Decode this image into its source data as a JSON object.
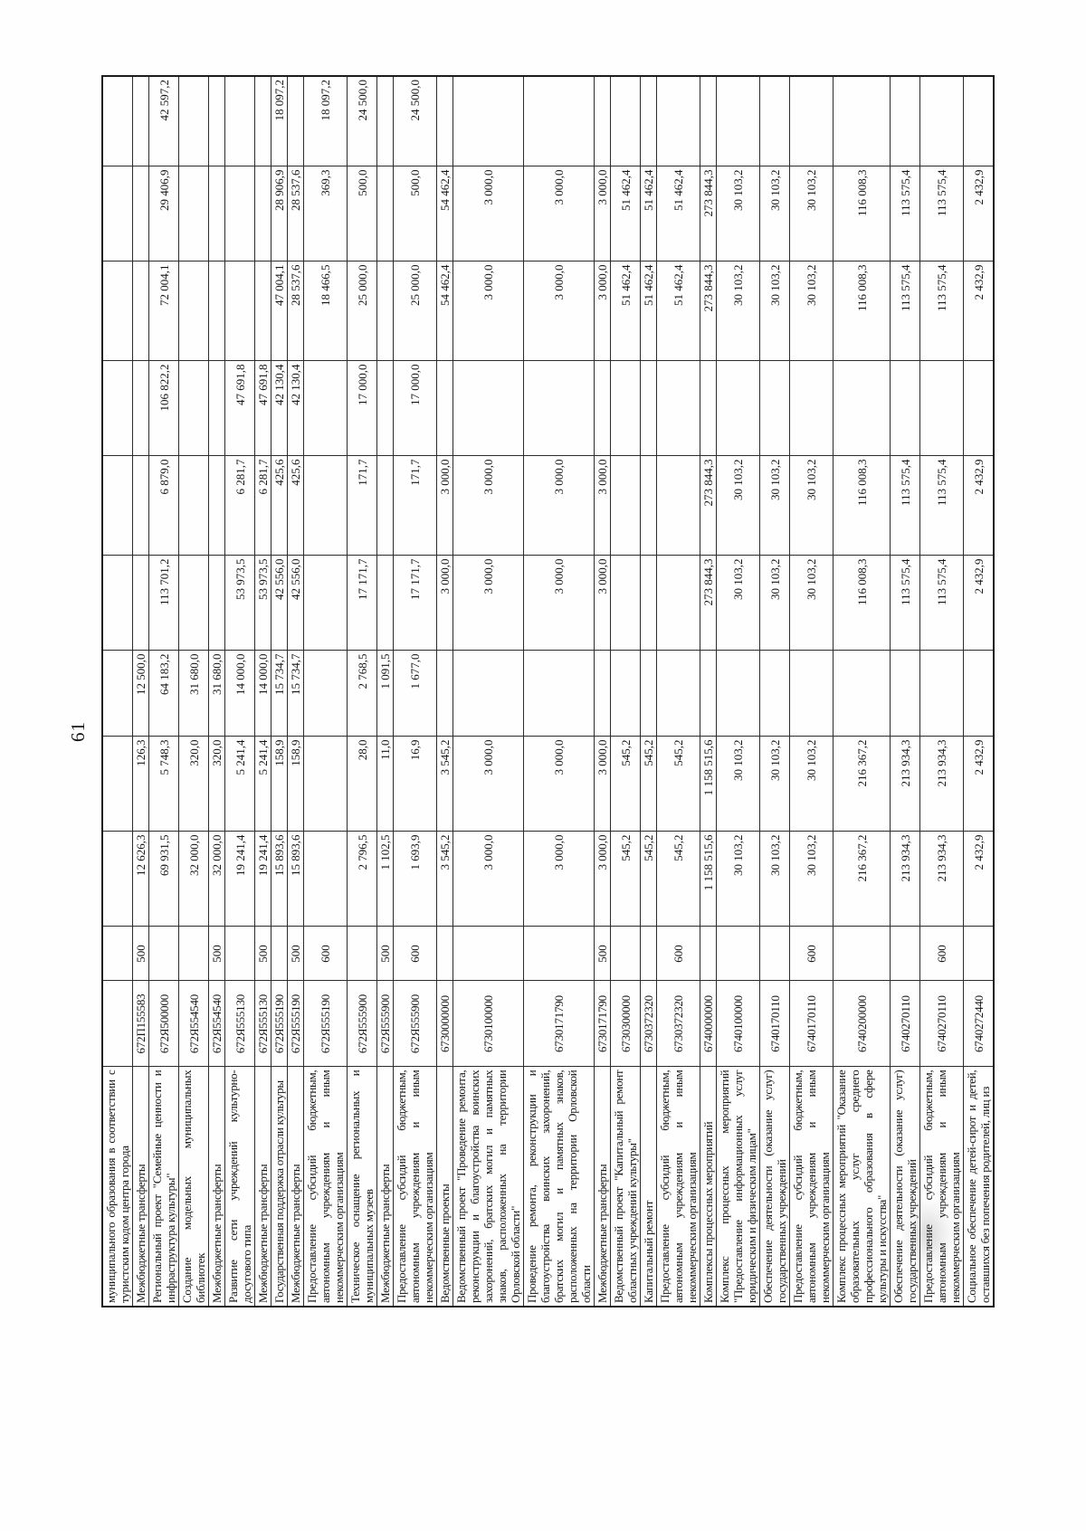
{
  "page": {
    "number": "61"
  },
  "table": {
    "rows": [
      {
        "description": "муниципального образования в соответствии с туристским кодом центра города",
        "code": "",
        "vr": "",
        "amounts": [
          "",
          "",
          "",
          "",
          "",
          "",
          "",
          "",
          ""
        ]
      },
      {
        "description": "Межбюджетные трансферты",
        "code": "672П155583",
        "vr": "500",
        "amounts": [
          "12 626,3",
          "126,3",
          "12 500,0",
          "",
          "",
          "",
          "",
          "",
          ""
        ]
      },
      {
        "description": "Региональный проект \"Семейные ценности и инфраструктура культуры\"",
        "code": "672Я500000",
        "vr": "",
        "amounts": [
          "69 931,5",
          "5 748,3",
          "64 183,2",
          "113 701,2",
          "6 879,0",
          "106 822,2",
          "72 004,1",
          "29 406,9",
          "42 597,2"
        ]
      },
      {
        "description": "Создание модельных муниципальных библиотек",
        "code": "672Я554540",
        "vr": "",
        "amounts": [
          "32 000,0",
          "320,0",
          "31 680,0",
          "",
          "",
          "",
          "",
          "",
          ""
        ]
      },
      {
        "description": "Межбюджетные трансферты",
        "code": "672Я554540",
        "vr": "500",
        "amounts": [
          "32 000,0",
          "320,0",
          "31 680,0",
          "",
          "",
          "",
          "",
          "",
          ""
        ]
      },
      {
        "description": "Развитие сети учреждений культурно-досугового типа",
        "code": "672Я555130",
        "vr": "",
        "amounts": [
          "19 241,4",
          "5 241,4",
          "14 000,0",
          "53 973,5",
          "6 281,7",
          "47 691,8",
          "",
          "",
          ""
        ]
      },
      {
        "description": "Межбюджетные трансферты",
        "code": "672Я555130",
        "vr": "500",
        "amounts": [
          "19 241,4",
          "5 241,4",
          "14 000,0",
          "53 973,5",
          "6 281,7",
          "47 691,8",
          "",
          "",
          ""
        ]
      },
      {
        "description": "Государственная поддержка отрасли культуры",
        "code": "672Я555190",
        "vr": "",
        "amounts": [
          "15 893,6",
          "158,9",
          "15 734,7",
          "42 556,0",
          "425,6",
          "42 130,4",
          "47 004,1",
          "28 906,9",
          "18 097,2"
        ]
      },
      {
        "description": "Межбюджетные трансферты",
        "code": "672Я555190",
        "vr": "500",
        "amounts": [
          "15 893,6",
          "158,9",
          "15 734,7",
          "42 556,0",
          "425,6",
          "42 130,4",
          "28 537,6",
          "28 537,6",
          ""
        ]
      },
      {
        "description": "Предоставление субсидий бюджетным, автономным учреждениям и иным некоммерческим организациям",
        "code": "672Я555190",
        "vr": "600",
        "amounts": [
          "",
          "",
          "",
          "",
          "",
          "",
          "18 466,5",
          "369,3",
          "18 097,2"
        ]
      },
      {
        "description": "Техническое оснащение региональных и муниципальных музеев",
        "code": "672Я555900",
        "vr": "",
        "amounts": [
          "2 796,5",
          "28,0",
          "2 768,5",
          "17 171,7",
          "171,7",
          "17 000,0",
          "25 000,0",
          "500,0",
          "24 500,0"
        ]
      },
      {
        "description": "Межбюджетные трансферты",
        "code": "672Я555900",
        "vr": "500",
        "amounts": [
          "1 102,5",
          "11,0",
          "1 091,5",
          "",
          "",
          "",
          "",
          "",
          ""
        ]
      },
      {
        "description": "Предоставление субсидий бюджетным, автономным учреждениям и иным некоммерческим организациям",
        "code": "672Я555900",
        "vr": "600",
        "amounts": [
          "1 693,9",
          "16,9",
          "1 677,0",
          "17 171,7",
          "171,7",
          "17 000,0",
          "25 000,0",
          "500,0",
          "24 500,0"
        ]
      },
      {
        "description": "Ведомственные проекты",
        "code": "6730000000",
        "vr": "",
        "amounts": [
          "3 545,2",
          "3 545,2",
          "",
          "3 000,0",
          "3 000,0",
          "",
          "54 462,4",
          "54 462,4",
          ""
        ]
      },
      {
        "description": "Ведомственный проект \"Проведение ремонта, реконструкции и благоустройства воинских захоронений, братских могил и памятных знаков, расположенных на территории Орловской области\"",
        "code": "6730100000",
        "vr": "",
        "amounts": [
          "3 000,0",
          "3 000,0",
          "",
          "3 000,0",
          "3 000,0",
          "",
          "3 000,0",
          "3 000,0",
          ""
        ]
      },
      {
        "description": "Проведение ремонта, реконструкции и благоустройства воинских захоронений, братских могил и памятных знаков, расположенных на территории Орловской области",
        "code": "6730171790",
        "vr": "",
        "amounts": [
          "3 000,0",
          "3 000,0",
          "",
          "3 000,0",
          "3 000,0",
          "",
          "3 000,0",
          "3 000,0",
          ""
        ]
      },
      {
        "description": "Межбюджетные трансферты",
        "code": "6730171790",
        "vr": "500",
        "amounts": [
          "3 000,0",
          "3 000,0",
          "",
          "3 000,0",
          "3 000,0",
          "",
          "3 000,0",
          "3 000,0",
          ""
        ]
      },
      {
        "description": "Ведомственный проект \"Капитальный ремонт областных учреждений культуры\"",
        "code": "6730300000",
        "vr": "",
        "amounts": [
          "545,2",
          "545,2",
          "",
          "",
          "",
          "",
          "51 462,4",
          "51 462,4",
          ""
        ]
      },
      {
        "description": "Капитальный ремонт",
        "code": "6730372320",
        "vr": "",
        "amounts": [
          "545,2",
          "545,2",
          "",
          "",
          "",
          "",
          "51 462,4",
          "51 462,4",
          ""
        ]
      },
      {
        "description": "Предоставление субсидий бюджетным, автономным учреждениям и иным некоммерческим организациям",
        "code": "6730372320",
        "vr": "600",
        "amounts": [
          "545,2",
          "545,2",
          "",
          "",
          "",
          "",
          "51 462,4",
          "51 462,4",
          ""
        ]
      },
      {
        "description": "Комплексы процессных мероприятий",
        "code": "6740000000",
        "vr": "",
        "amounts": [
          "1 158 515,6",
          "1 158 515,6",
          "",
          "273 844,3",
          "273 844,3",
          "",
          "273 844,3",
          "273 844,3",
          ""
        ]
      },
      {
        "description": "Комплекс процессных мероприятий \"Предоставление информационных услуг юридическим и физическим лицам\"",
        "code": "6740100000",
        "vr": "",
        "amounts": [
          "30 103,2",
          "30 103,2",
          "",
          "30 103,2",
          "30 103,2",
          "",
          "30 103,2",
          "30 103,2",
          ""
        ]
      },
      {
        "description": "Обеспечение деятельности (оказание услуг) государственных учреждений",
        "code": "6740170110",
        "vr": "",
        "amounts": [
          "30 103,2",
          "30 103,2",
          "",
          "30 103,2",
          "30 103,2",
          "",
          "30 103,2",
          "30 103,2",
          ""
        ]
      },
      {
        "description": "Предоставление субсидий бюджетным, автономным учреждениям и иным некоммерческим организациям",
        "code": "6740170110",
        "vr": "600",
        "amounts": [
          "30 103,2",
          "30 103,2",
          "",
          "30 103,2",
          "30 103,2",
          "",
          "30 103,2",
          "30 103,2",
          ""
        ]
      },
      {
        "description": "Комплекс процессных мероприятий \"Оказание образовательных услуг среднего профессионального образования в сфере культуры и искусства\"",
        "code": "6740200000",
        "vr": "",
        "amounts": [
          "216 367,2",
          "216 367,2",
          "",
          "116 008,3",
          "116 008,3",
          "",
          "116 008,3",
          "116 008,3",
          ""
        ]
      },
      {
        "description": "Обеспечение деятельности (оказание услуг) государственных учреждений",
        "code": "6740270110",
        "vr": "",
        "amounts": [
          "213 934,3",
          "213 934,3",
          "",
          "113 575,4",
          "113 575,4",
          "",
          "113 575,4",
          "113 575,4",
          ""
        ]
      },
      {
        "description": "Предоставление субсидий бюджетным, автономным учреждениям и иным некоммерческим организациям",
        "code": "6740270110",
        "vr": "600",
        "amounts": [
          "213 934,3",
          "213 934,3",
          "",
          "113 575,4",
          "113 575,4",
          "",
          "113 575,4",
          "113 575,4",
          ""
        ]
      },
      {
        "description": "Социальное обеспечение детей-сирот и детей, оставшихся без попечения родителей, лиц из",
        "code": "6740272440",
        "vr": "",
        "amounts": [
          "2 432,9",
          "2 432,9",
          "",
          "2 432,9",
          "2 432,9",
          "",
          "2 432,9",
          "2 432,9",
          ""
        ]
      }
    ]
  }
}
